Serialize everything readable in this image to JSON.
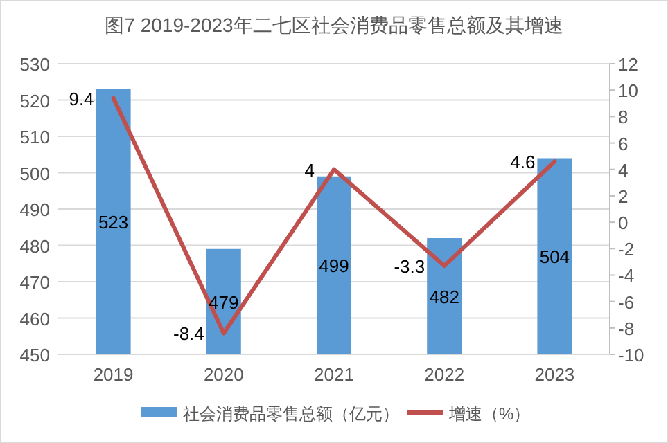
{
  "chart_data": {
    "type": "bar",
    "title": "图7 2019-2023年二七区社会消费品零售总额及其增速",
    "categories": [
      "2019",
      "2020",
      "2021",
      "2022",
      "2023"
    ],
    "series": [
      {
        "name": "社会消费品零售总额（亿元）",
        "color": "#5b9bd5",
        "values": [
          523,
          479,
          499,
          482,
          504
        ]
      },
      {
        "name": "增速（%）",
        "type": "line",
        "axis": "y2",
        "color": "#c0504d",
        "values": [
          9.4,
          -8.4,
          4,
          -3.3,
          4.6
        ]
      }
    ],
    "ylim": [
      450,
      530
    ],
    "yticks": [
      450,
      460,
      470,
      480,
      490,
      500,
      510,
      520,
      530
    ],
    "y2lim": [
      -10,
      12
    ],
    "y2ticks": [
      -10,
      -8,
      -6,
      -4,
      -2,
      0,
      2,
      4,
      6,
      8,
      10,
      12
    ],
    "grid": "y",
    "legend": "bottom",
    "data_labels": true,
    "marker": "none",
    "line_style": "solid"
  }
}
